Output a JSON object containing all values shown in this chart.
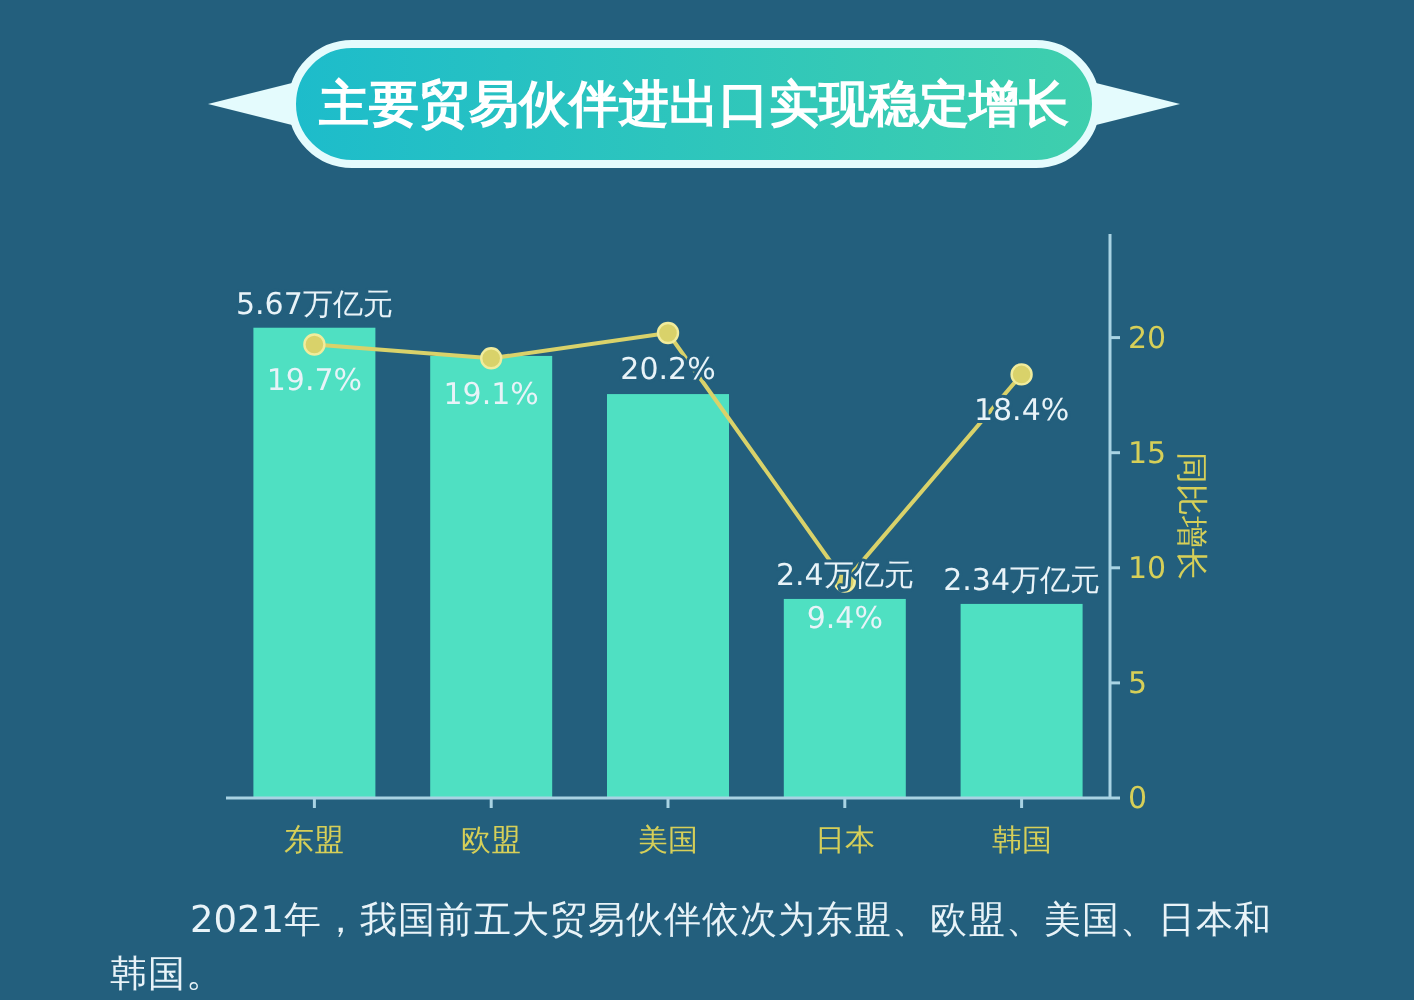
{
  "chart_data": {
    "type": "bar",
    "title": "主要贸易伙伴进出口实现稳定增长",
    "y2label": "同比增长",
    "categories": [
      "东盟",
      "欧盟",
      "美国",
      "日本",
      "韩国"
    ],
    "series": [
      {
        "color": "#4fe0c2",
        "values": [
          5.67,
          5.33,
          4.87,
          2.4,
          2.34
        ],
        "value_labels": [
          "5.67万亿元",
          null,
          null,
          "2.4万亿元",
          "2.34万亿元"
        ]
      },
      {
        "type": "line",
        "axis": "y2",
        "color": "#d9d26a",
        "marker": "circle",
        "values": [
          19.7,
          19.1,
          20.2,
          9.4,
          18.4
        ],
        "value_labels": [
          "19.7%",
          "19.1%",
          "20.2%",
          "9.4%",
          "18.4%"
        ]
      }
    ],
    "ylim": [
      0,
      6.8
    ],
    "y2lim": [
      0,
      24.5
    ],
    "y2ticks": [
      0,
      5,
      10,
      15,
      20
    ],
    "tick_labels": [
      "x",
      "y2"
    ],
    "annotations": [
      "2021年，我国前五大贸易伙伴依次为东盟、欧盟、美国、日本和韩国。"
    ]
  }
}
